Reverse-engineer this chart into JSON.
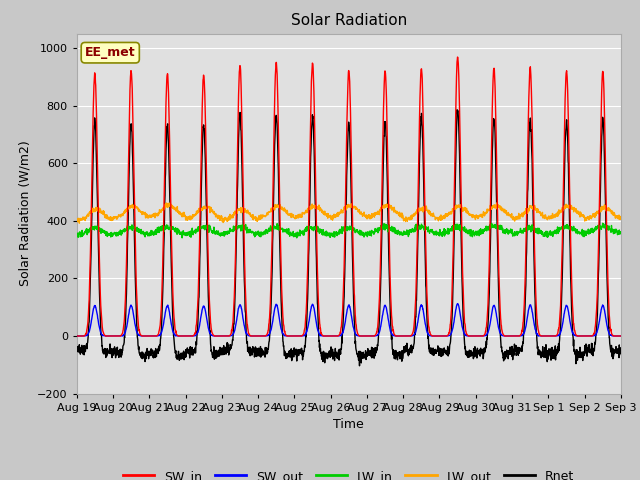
{
  "title": "Solar Radiation",
  "xlabel": "Time",
  "ylabel": "Solar Radiation (W/m2)",
  "ylim": [
    -200,
    1050
  ],
  "yticks": [
    -200,
    0,
    200,
    400,
    600,
    800,
    1000
  ],
  "fig_bg_color": "#c8c8c8",
  "plot_bg_color": "#e0e0e0",
  "annotation_text": "EE_met",
  "annotation_box_color": "#ffffc0",
  "annotation_border_color": "#888800",
  "n_days": 15,
  "pts_per_day": 144,
  "colors": {
    "SW_in": "#ff0000",
    "SW_out": "#0000ff",
    "LW_in": "#00cc00",
    "LW_out": "#ffa500",
    "Rnet": "#000000"
  },
  "linewidths": {
    "SW_in": 1.0,
    "SW_out": 1.0,
    "LW_in": 1.0,
    "LW_out": 1.0,
    "Rnet": 1.0
  },
  "sw_peaks": [
    910,
    920,
    910,
    905,
    940,
    950,
    950,
    920,
    920,
    930,
    970,
    930,
    930,
    920,
    920
  ],
  "xtick_labels": [
    "Aug 19",
    "Aug 20",
    "Aug 21",
    "Aug 22",
    "Aug 23",
    "Aug 24",
    "Aug 25",
    "Aug 26",
    "Aug 27",
    "Aug 28",
    "Aug 29",
    "Aug 30",
    "Aug 31",
    "Sep 1",
    "Sep 2",
    "Sep 3"
  ]
}
